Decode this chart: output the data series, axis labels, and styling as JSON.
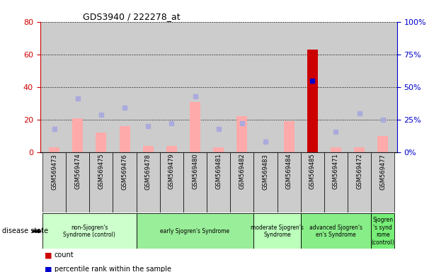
{
  "title": "GDS3940 / 222278_at",
  "samples": [
    "GSM569473",
    "GSM569474",
    "GSM569475",
    "GSM569476",
    "GSM569478",
    "GSM569479",
    "GSM569480",
    "GSM569481",
    "GSM569482",
    "GSM569483",
    "GSM569484",
    "GSM569485",
    "GSM569471",
    "GSM569472",
    "GSM569477"
  ],
  "count_values": [
    0,
    0,
    0,
    0,
    0,
    0,
    0,
    0,
    0,
    0,
    0,
    63,
    0,
    0,
    0
  ],
  "count_is_present": [
    false,
    false,
    false,
    false,
    false,
    false,
    false,
    false,
    false,
    false,
    false,
    true,
    false,
    false,
    false
  ],
  "percentile_rank": [
    null,
    null,
    null,
    null,
    null,
    null,
    null,
    null,
    null,
    null,
    null,
    55,
    null,
    null,
    null
  ],
  "absent_values": [
    3,
    21,
    12,
    16,
    4,
    4,
    31,
    3,
    22,
    null,
    19,
    null,
    3,
    3,
    10
  ],
  "absent_ranks": [
    18,
    41,
    29,
    34,
    20,
    22,
    43,
    18,
    22,
    8,
    null,
    null,
    16,
    30,
    25
  ],
  "disease_groups": [
    {
      "label": "non-Sjogren's\nSyndrome (control)",
      "start": 0,
      "end": 4,
      "color": "#ccffcc"
    },
    {
      "label": "early Sjogren's Syndrome",
      "start": 4,
      "end": 9,
      "color": "#99ee99"
    },
    {
      "label": "moderate Sjogren's\nSyndrome",
      "start": 9,
      "end": 11,
      "color": "#bbffbb"
    },
    {
      "label": "advanced Sjogren's\nen's Syndrome",
      "start": 11,
      "end": 14,
      "color": "#88ee88"
    },
    {
      "label": "Sjogren\n's synd\nrome\n(control)",
      "start": 14,
      "end": 15,
      "color": "#77ee77"
    }
  ],
  "ylim_left": [
    0,
    80
  ],
  "ylim_right": [
    0,
    100
  ],
  "yticks_left": [
    0,
    20,
    40,
    60,
    80
  ],
  "yticks_right": [
    0,
    25,
    50,
    75,
    100
  ],
  "bar_color_absent": "#ffaaaa",
  "bar_color_present_red": "#cc0000",
  "dot_color_rank_absent": "#aaaadd",
  "dot_color_percentile_present": "#0000cc",
  "left_axis_color": "#cc0000",
  "right_axis_color": "#0000cc",
  "bg_color": "#cccccc",
  "tick_label_bg": "#bbbbbb"
}
